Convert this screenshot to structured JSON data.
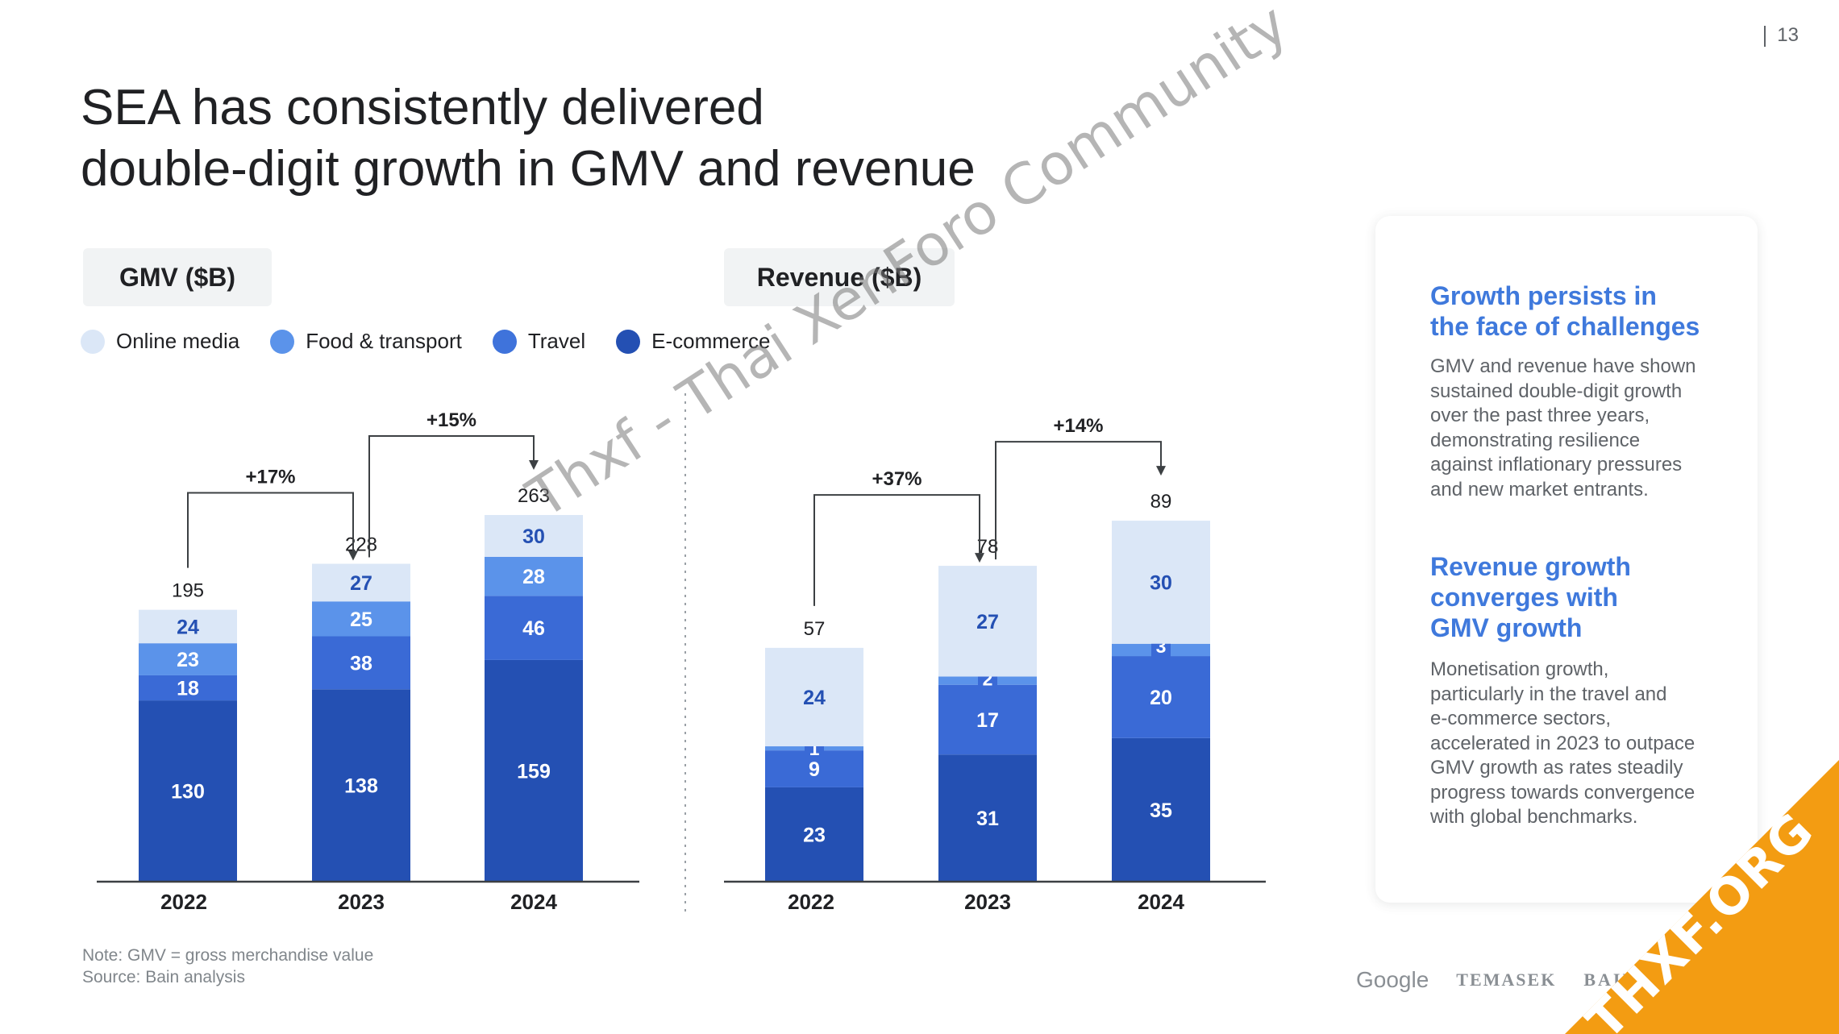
{
  "page": {
    "number": "13",
    "title_line1": "SEA has consistently delivered",
    "title_line2": "double-digit growth in GMV and revenue"
  },
  "legend": [
    {
      "label": "Online media",
      "color": "#dbe7f7"
    },
    {
      "label": "Food & transport",
      "color": "#5b93ea"
    },
    {
      "label": "Travel",
      "color": "#3f73db"
    },
    {
      "label": "E-commerce",
      "color": "#2450b3"
    }
  ],
  "chart_data": [
    {
      "type": "bar",
      "stacked": true,
      "title": "GMV ($B)",
      "categories": [
        "2022",
        "2023",
        "2024"
      ],
      "series": [
        {
          "name": "E-commerce",
          "values": [
            130,
            138,
            159
          ],
          "color": "#2450b3"
        },
        {
          "name": "Travel",
          "values": [
            18,
            38,
            46
          ],
          "color": "#3a6ad6"
        },
        {
          "name": "Food & transport",
          "values": [
            23,
            25,
            28
          ],
          "color": "#5b93ea"
        },
        {
          "name": "Online media",
          "values": [
            24,
            27,
            30
          ],
          "color": "#dbe7f7"
        }
      ],
      "totals": [
        195,
        228,
        263
      ],
      "growth": [
        {
          "from": "2022",
          "to": "2023",
          "label": "+17%"
        },
        {
          "from": "2023",
          "to": "2024",
          "label": "+15%"
        }
      ],
      "ylim": [
        0,
        263
      ]
    },
    {
      "type": "bar",
      "stacked": true,
      "title": "Revenue ($B)",
      "categories": [
        "2022",
        "2023",
        "2024"
      ],
      "series": [
        {
          "name": "E-commerce",
          "values": [
            23,
            31,
            35
          ],
          "color": "#2450b3"
        },
        {
          "name": "Travel",
          "values": [
            9,
            17,
            20
          ],
          "color": "#3a6ad6"
        },
        {
          "name": "Food & transport",
          "values": [
            1,
            2,
            3
          ],
          "color": "#5b93ea"
        },
        {
          "name": "Online media",
          "values": [
            24,
            27,
            30
          ],
          "color": "#dbe7f7"
        }
      ],
      "totals": [
        57,
        78,
        89
      ],
      "growth": [
        {
          "from": "2022",
          "to": "2023",
          "label": "+37%"
        },
        {
          "from": "2023",
          "to": "2024",
          "label": "+14%"
        }
      ],
      "ylim": [
        0,
        89
      ]
    }
  ],
  "side_panel": {
    "heading1_line1": "Growth persists in",
    "heading1_line2": "the face of challenges",
    "text1_lines": [
      "GMV and revenue have shown",
      "sustained double-digit growth",
      "over the past three years,",
      "demonstrating resilience",
      "against inflationary pressures",
      "and new market entrants."
    ],
    "heading2_line1": "Revenue growth",
    "heading2_line2": "converges with",
    "heading2_line3": "GMV growth",
    "text2_lines": [
      "Monetisation growth,",
      "particularly in the travel and",
      "e-commerce sectors,",
      "accelerated in 2023 to outpace",
      "GMV growth as rates steadily",
      "progress towards convergence",
      "with global benchmarks."
    ]
  },
  "footer": {
    "note": "Note: GMV = gross merchandise value",
    "source": "Source: Bain analysis",
    "logo_google": "Google",
    "logo_temasek": "TEMASEK",
    "logo_bain": "BAIN & COMPANY"
  },
  "overlays": {
    "watermark": "Thxf - Thai XenForo Community",
    "ribbon": "THXF.ORG"
  }
}
